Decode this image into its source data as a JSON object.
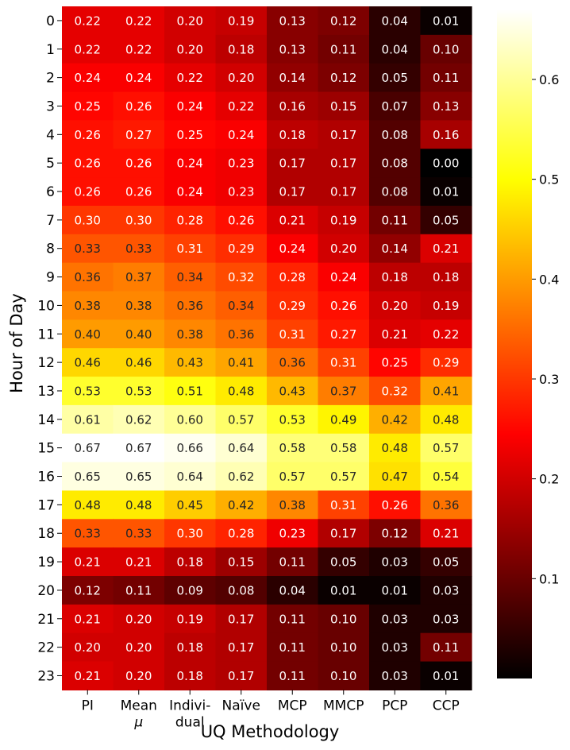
{
  "chart_data": {
    "type": "heatmap",
    "title": "",
    "xlabel": "UQ Methodology",
    "ylabel": "Hour of Day",
    "x_categories": [
      [
        "PI"
      ],
      [
        "Mean",
        "μ"
      ],
      [
        "Indivi-",
        "dual"
      ],
      [
        "Naïve"
      ],
      [
        "MCP"
      ],
      [
        "MMCP"
      ],
      [
        "PCP"
      ],
      [
        "CCP"
      ]
    ],
    "y_categories": [
      "0",
      "1",
      "2",
      "3",
      "4",
      "5",
      "6",
      "7",
      "8",
      "9",
      "10",
      "11",
      "12",
      "13",
      "14",
      "15",
      "16",
      "17",
      "18",
      "19",
      "20",
      "21",
      "22",
      "23"
    ],
    "values": [
      [
        0.22,
        0.22,
        0.2,
        0.19,
        0.13,
        0.12,
        0.04,
        0.01
      ],
      [
        0.22,
        0.22,
        0.2,
        0.18,
        0.13,
        0.11,
        0.04,
        0.1
      ],
      [
        0.24,
        0.24,
        0.22,
        0.2,
        0.14,
        0.12,
        0.05,
        0.11
      ],
      [
        0.25,
        0.26,
        0.24,
        0.22,
        0.16,
        0.15,
        0.07,
        0.13
      ],
      [
        0.26,
        0.27,
        0.25,
        0.24,
        0.18,
        0.17,
        0.08,
        0.16
      ],
      [
        0.26,
        0.26,
        0.24,
        0.23,
        0.17,
        0.17,
        0.08,
        0.0
      ],
      [
        0.26,
        0.26,
        0.24,
        0.23,
        0.17,
        0.17,
        0.08,
        0.01
      ],
      [
        0.3,
        0.3,
        0.28,
        0.26,
        0.21,
        0.19,
        0.11,
        0.05
      ],
      [
        0.33,
        0.33,
        0.31,
        0.29,
        0.24,
        0.2,
        0.14,
        0.21
      ],
      [
        0.36,
        0.37,
        0.34,
        0.32,
        0.28,
        0.24,
        0.18,
        0.18
      ],
      [
        0.38,
        0.38,
        0.36,
        0.34,
        0.29,
        0.26,
        0.2,
        0.19
      ],
      [
        0.4,
        0.4,
        0.38,
        0.36,
        0.31,
        0.27,
        0.21,
        0.22
      ],
      [
        0.46,
        0.46,
        0.43,
        0.41,
        0.36,
        0.31,
        0.25,
        0.29
      ],
      [
        0.53,
        0.53,
        0.51,
        0.48,
        0.43,
        0.37,
        0.32,
        0.41
      ],
      [
        0.61,
        0.62,
        0.6,
        0.57,
        0.53,
        0.49,
        0.42,
        0.48
      ],
      [
        0.67,
        0.67,
        0.66,
        0.64,
        0.58,
        0.58,
        0.48,
        0.57
      ],
      [
        0.65,
        0.65,
        0.64,
        0.62,
        0.57,
        0.57,
        0.47,
        0.54
      ],
      [
        0.48,
        0.48,
        0.45,
        0.42,
        0.38,
        0.31,
        0.26,
        0.36
      ],
      [
        0.33,
        0.33,
        0.3,
        0.28,
        0.23,
        0.17,
        0.12,
        0.21
      ],
      [
        0.21,
        0.21,
        0.18,
        0.15,
        0.11,
        0.05,
        0.03,
        0.05
      ],
      [
        0.12,
        0.11,
        0.09,
        0.08,
        0.04,
        0.01,
        0.01,
        0.03
      ],
      [
        0.21,
        0.2,
        0.19,
        0.17,
        0.11,
        0.1,
        0.03,
        0.03
      ],
      [
        0.2,
        0.2,
        0.18,
        0.17,
        0.11,
        0.1,
        0.03,
        0.11
      ],
      [
        0.21,
        0.2,
        0.18,
        0.17,
        0.11,
        0.1,
        0.03,
        0.01
      ]
    ],
    "colormap": "hot",
    "vmin": 0.0,
    "vmax": 0.67,
    "colorbar_ticks": [
      0.1,
      0.2,
      0.3,
      0.4,
      0.5,
      0.6
    ],
    "colorbar_tick_labels": [
      "0.1",
      "0.2",
      "0.3",
      "0.4",
      "0.5",
      "0.6"
    ],
    "annotation_format": "0.00",
    "colorbar": true
  }
}
